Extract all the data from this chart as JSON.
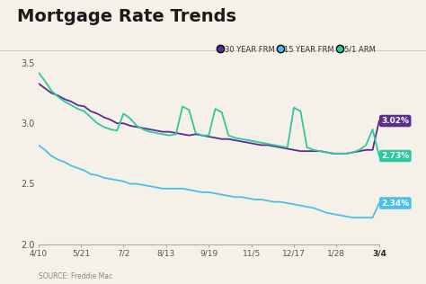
{
  "title": "Mortgage Rate Trends",
  "source": "SOURCE: Freddie Mac",
  "background_color": "#f5f0e8",
  "x_labels": [
    "4/10",
    "5/21",
    "7/2",
    "8/13",
    "9/19",
    "11/5",
    "12/17",
    "1/28",
    "3/4"
  ],
  "ylim": [
    2.0,
    3.55
  ],
  "yticks": [
    2.0,
    2.5,
    3.0,
    3.5
  ],
  "legend_items": [
    "30 YEAR FRM",
    "15 YEAR FRM",
    "5/1 ARM"
  ],
  "legend_colors": [
    "#5b2d8e",
    "#4bbfe8",
    "#2dc89e"
  ],
  "color_30yr": "#5b2d8e",
  "color_15yr": "#4bbfe8",
  "color_arm": "#2dc89e",
  "ann_30yr": {
    "label": "3.02%",
    "y": 3.02,
    "bg": "#5b2d8e",
    "fg": "#ffffff"
  },
  "ann_arm": {
    "label": "2.73%",
    "y": 2.73,
    "bg": "#2dc89e",
    "fg": "#ffffff"
  },
  "ann_15yr": {
    "label": "2.34%",
    "y": 2.34,
    "bg": "#4bbfe8",
    "fg": "#ffffff"
  },
  "series_30yr": [
    3.33,
    3.29,
    3.25,
    3.23,
    3.2,
    3.18,
    3.15,
    3.14,
    3.1,
    3.08,
    3.05,
    3.03,
    3.0,
    3.0,
    2.98,
    2.97,
    2.96,
    2.95,
    2.94,
    2.93,
    2.93,
    2.92,
    2.91,
    2.9,
    2.91,
    2.9,
    2.89,
    2.88,
    2.87,
    2.87,
    2.86,
    2.85,
    2.84,
    2.83,
    2.82,
    2.82,
    2.81,
    2.8,
    2.79,
    2.78,
    2.77,
    2.77,
    2.77,
    2.77,
    2.76,
    2.75,
    2.75,
    2.75,
    2.76,
    2.77,
    2.78,
    2.78,
    3.02
  ],
  "series_15yr": [
    2.82,
    2.78,
    2.73,
    2.7,
    2.68,
    2.65,
    2.63,
    2.61,
    2.58,
    2.57,
    2.55,
    2.54,
    2.53,
    2.52,
    2.5,
    2.5,
    2.49,
    2.48,
    2.47,
    2.46,
    2.46,
    2.46,
    2.46,
    2.45,
    2.44,
    2.43,
    2.43,
    2.42,
    2.41,
    2.4,
    2.39,
    2.39,
    2.38,
    2.37,
    2.37,
    2.36,
    2.35,
    2.35,
    2.34,
    2.33,
    2.32,
    2.31,
    2.3,
    2.28,
    2.26,
    2.25,
    2.24,
    2.23,
    2.22,
    2.22,
    2.22,
    2.22,
    2.34
  ],
  "series_arm": [
    3.42,
    3.35,
    3.27,
    3.22,
    3.18,
    3.15,
    3.12,
    3.1,
    3.05,
    3.0,
    2.97,
    2.95,
    2.94,
    3.08,
    3.04,
    2.98,
    2.95,
    2.93,
    2.92,
    2.91,
    2.9,
    2.91,
    3.14,
    3.11,
    2.92,
    2.9,
    2.9,
    3.12,
    3.09,
    2.9,
    2.88,
    2.87,
    2.86,
    2.85,
    2.84,
    2.83,
    2.82,
    2.81,
    2.8,
    3.13,
    3.1,
    2.8,
    2.78,
    2.77,
    2.76,
    2.75,
    2.75,
    2.75,
    2.76,
    2.78,
    2.82,
    2.95,
    2.73
  ]
}
